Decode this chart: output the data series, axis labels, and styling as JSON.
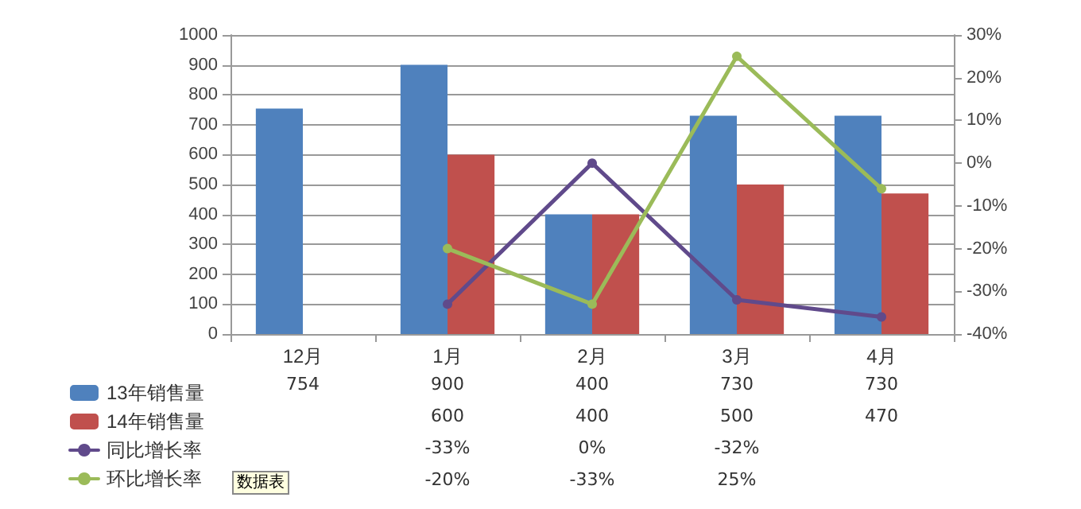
{
  "chart_data": {
    "type": "bar",
    "categories": [
      "12月",
      "1月",
      "2月",
      "3月",
      "4月"
    ],
    "series": [
      {
        "name": "13年销售量",
        "color": "#4f81bd",
        "values": [
          754,
          900,
          400,
          730,
          730
        ],
        "value_labels": [
          "754",
          "900",
          "400",
          "730",
          "730"
        ]
      },
      {
        "name": "14年销售量",
        "color": "#c0504d",
        "values": [
          null,
          600,
          400,
          500,
          470
        ],
        "value_labels": [
          null,
          "600",
          "400",
          "500",
          "470"
        ]
      },
      {
        "name": "同比增长率",
        "type": "line",
        "axis": "y2",
        "color": "#604a8b",
        "values": [
          null,
          -33,
          0,
          -32,
          -36
        ],
        "value_labels": [
          null,
          "-33%",
          "0%",
          "-32%",
          null
        ]
      },
      {
        "name": "环比增长率",
        "type": "line",
        "axis": "y2",
        "color": "#9bbb59",
        "values": [
          null,
          -20,
          -33,
          25,
          -6
        ],
        "value_labels": [
          null,
          "-20%",
          "-33%",
          "25%",
          null
        ]
      }
    ],
    "ylim": [
      0,
      1000
    ],
    "yticks": [
      0,
      100,
      200,
      300,
      400,
      500,
      600,
      700,
      800,
      900,
      1000
    ],
    "y2lim": [
      -40,
      30
    ],
    "y2ticks": [
      {
        "value": -40,
        "label": "-40%"
      },
      {
        "value": -30,
        "label": "-30%"
      },
      {
        "value": -20,
        "label": "-20%"
      },
      {
        "value": -10,
        "label": "-10%"
      },
      {
        "value": 0,
        "label": "0%"
      },
      {
        "value": 10,
        "label": "10%"
      },
      {
        "value": 20,
        "label": "20%"
      },
      {
        "value": 30,
        "label": "30%"
      }
    ],
    "grid": "y",
    "legend": "bottom left",
    "marker": "circle",
    "line_style": "solid",
    "annotations": [
      "数据表"
    ]
  }
}
